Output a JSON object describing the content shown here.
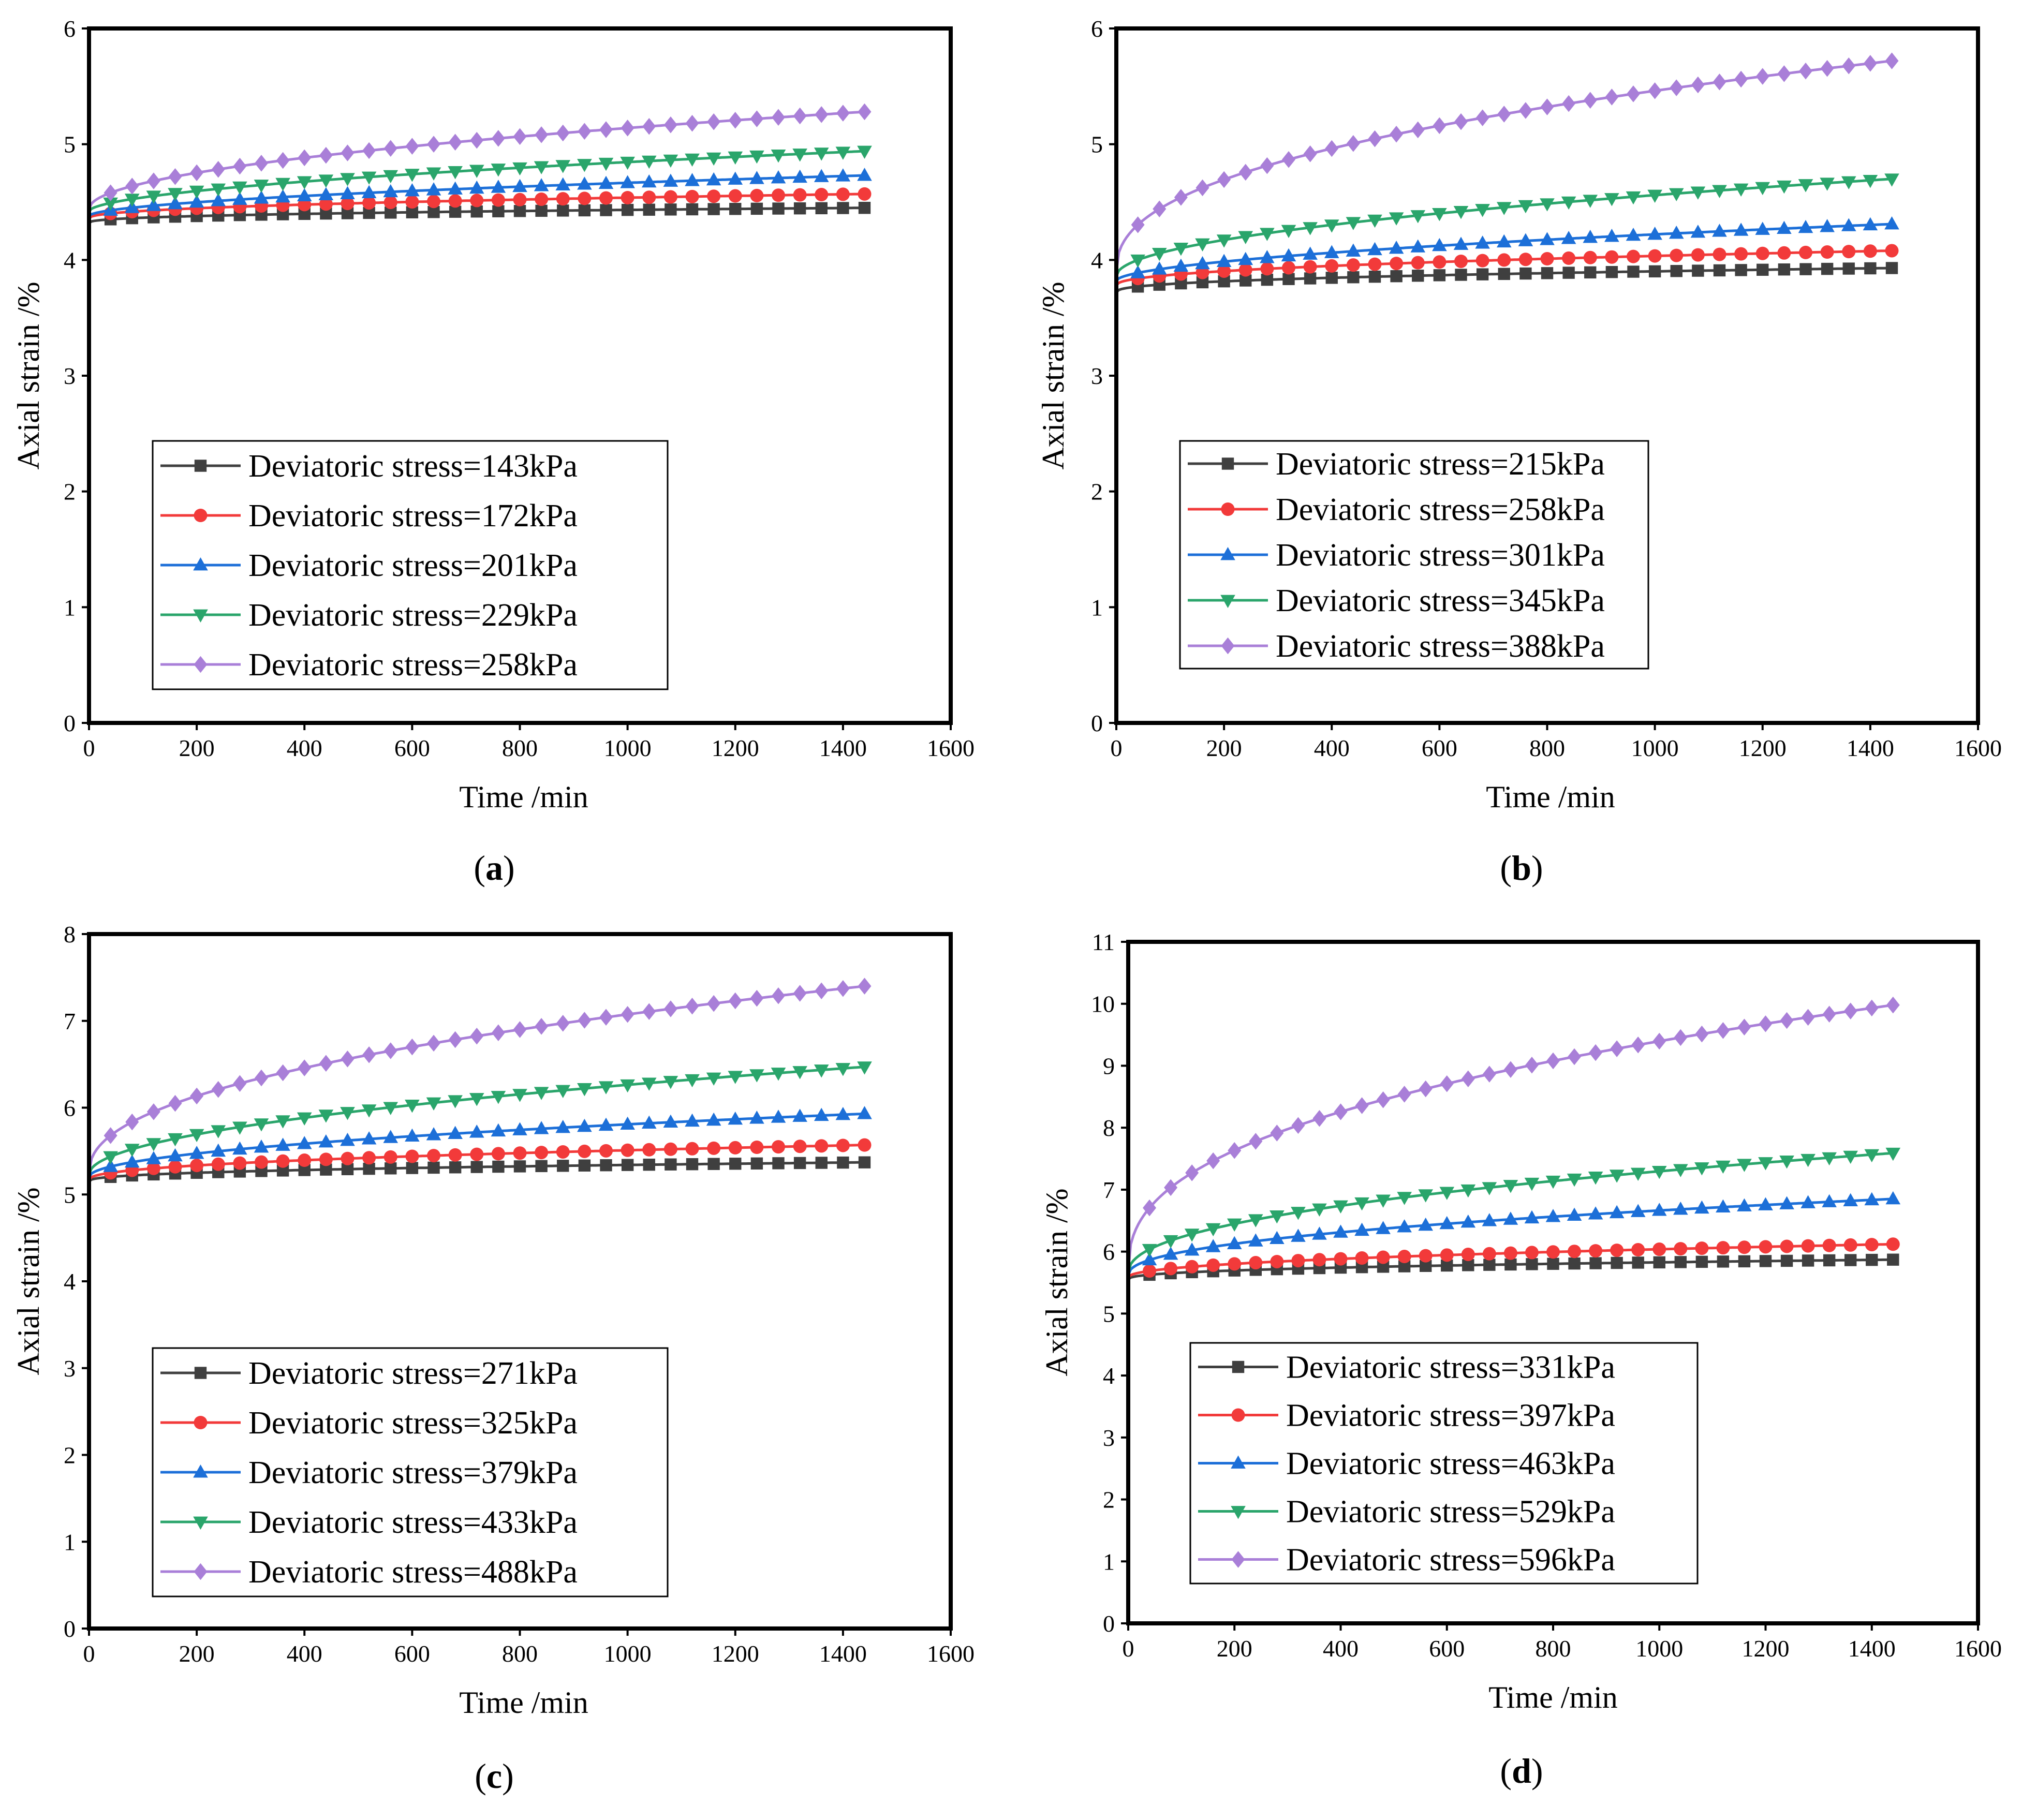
{
  "chart_data": [
    {
      "type": "line",
      "panel_label": "a",
      "xlabel": "Time /min",
      "ylabel": "Axial strain /%",
      "xlim": [
        0,
        1600
      ],
      "ylim": [
        0,
        6
      ],
      "xticks": [
        0,
        200,
        400,
        600,
        800,
        1000,
        1200,
        1400,
        1600
      ],
      "yticks": [
        0,
        1,
        2,
        3,
        4,
        5,
        6
      ],
      "legend_position": "lower-left",
      "series": [
        {
          "name": "Deviatoric stress=143kPa",
          "color": "#3f3f3f",
          "marker": "square",
          "start": 4.32,
          "end": 4.45,
          "k": 0.4
        },
        {
          "name": "Deviatoric stress=172kPa",
          "color": "#f23a3a",
          "marker": "circle",
          "start": 4.36,
          "end": 4.57,
          "k": 0.45
        },
        {
          "name": "Deviatoric stress=201kPa",
          "color": "#1c6fd8",
          "marker": "triangle-up",
          "start": 4.38,
          "end": 4.73,
          "k": 0.55
        },
        {
          "name": "Deviatoric stress=229kPa",
          "color": "#2aa56b",
          "marker": "triangle-down",
          "start": 4.42,
          "end": 4.94,
          "k": 0.55
        },
        {
          "name": "Deviatoric stress=258kPa",
          "color": "#a97fd8",
          "marker": "diamond",
          "start": 4.44,
          "end": 5.28,
          "k": 0.5
        }
      ]
    },
    {
      "type": "line",
      "panel_label": "b",
      "xlabel": "Time /min",
      "ylabel": "Axial strain /%",
      "xlim": [
        0,
        1600
      ],
      "ylim": [
        0,
        6
      ],
      "xticks": [
        0,
        200,
        400,
        600,
        800,
        1000,
        1200,
        1400,
        1600
      ],
      "yticks": [
        0,
        1,
        2,
        3,
        4,
        5,
        6
      ],
      "legend_position": "lower-left",
      "series": [
        {
          "name": "Deviatoric stress=215kPa",
          "color": "#3f3f3f",
          "marker": "square",
          "start": 3.72,
          "end": 3.93,
          "k": 0.4
        },
        {
          "name": "Deviatoric stress=258kPa",
          "color": "#f23a3a",
          "marker": "circle",
          "start": 3.78,
          "end": 4.08,
          "k": 0.45
        },
        {
          "name": "Deviatoric stress=301kPa",
          "color": "#1c6fd8",
          "marker": "triangle-up",
          "start": 3.82,
          "end": 4.31,
          "k": 0.55
        },
        {
          "name": "Deviatoric stress=345kPa",
          "color": "#2aa56b",
          "marker": "triangle-down",
          "start": 3.86,
          "end": 4.7,
          "k": 0.5
        },
        {
          "name": "Deviatoric stress=388kPa",
          "color": "#a97fd8",
          "marker": "diamond",
          "start": 3.9,
          "end": 5.72,
          "k": 0.42
        }
      ]
    },
    {
      "type": "line",
      "panel_label": "c",
      "xlabel": "Time /min",
      "ylabel": "Axial strain /%",
      "xlim": [
        0,
        1600
      ],
      "ylim": [
        0,
        8
      ],
      "xticks": [
        0,
        200,
        400,
        600,
        800,
        1000,
        1200,
        1400,
        1600
      ],
      "yticks": [
        0,
        1,
        2,
        3,
        4,
        5,
        6,
        7,
        8
      ],
      "legend_position": "lower-left",
      "series": [
        {
          "name": "Deviatoric stress=271kPa",
          "color": "#3f3f3f",
          "marker": "square",
          "start": 5.15,
          "end": 5.37,
          "k": 0.4
        },
        {
          "name": "Deviatoric stress=325kPa",
          "color": "#f23a3a",
          "marker": "circle",
          "start": 5.17,
          "end": 5.57,
          "k": 0.45
        },
        {
          "name": "Deviatoric stress=379kPa",
          "color": "#1c6fd8",
          "marker": "triangle-up",
          "start": 5.2,
          "end": 5.93,
          "k": 0.5
        },
        {
          "name": "Deviatoric stress=433kPa",
          "color": "#2aa56b",
          "marker": "triangle-down",
          "start": 5.23,
          "end": 6.47,
          "k": 0.5
        },
        {
          "name": "Deviatoric stress=488kPa",
          "color": "#a97fd8",
          "marker": "diamond",
          "start": 5.25,
          "end": 7.4,
          "k": 0.45
        }
      ]
    },
    {
      "type": "line",
      "panel_label": "d",
      "xlabel": "Time /min",
      "ylabel": "Axial strain /%",
      "xlim": [
        0,
        1600
      ],
      "ylim": [
        0,
        11
      ],
      "xticks": [
        0,
        200,
        400,
        600,
        800,
        1000,
        1200,
        1400,
        1600
      ],
      "yticks": [
        0,
        1,
        2,
        3,
        4,
        5,
        6,
        7,
        8,
        9,
        10,
        11
      ],
      "legend_position": "lower-left",
      "series": [
        {
          "name": "Deviatoric stress=331kPa",
          "color": "#3f3f3f",
          "marker": "square",
          "start": 5.55,
          "end": 5.87,
          "k": 0.4
        },
        {
          "name": "Deviatoric stress=397kPa",
          "color": "#f23a3a",
          "marker": "circle",
          "start": 5.58,
          "end": 6.12,
          "k": 0.45
        },
        {
          "name": "Deviatoric stress=463kPa",
          "color": "#1c6fd8",
          "marker": "triangle-up",
          "start": 5.62,
          "end": 6.85,
          "k": 0.45
        },
        {
          "name": "Deviatoric stress=529kPa",
          "color": "#2aa56b",
          "marker": "triangle-down",
          "start": 5.65,
          "end": 7.59,
          "k": 0.45
        },
        {
          "name": "Deviatoric stress=596kPa",
          "color": "#a97fd8",
          "marker": "diamond",
          "start": 5.68,
          "end": 9.98,
          "k": 0.4
        }
      ]
    }
  ],
  "time_sample": {
    "t_max": 1440,
    "count": 37
  }
}
